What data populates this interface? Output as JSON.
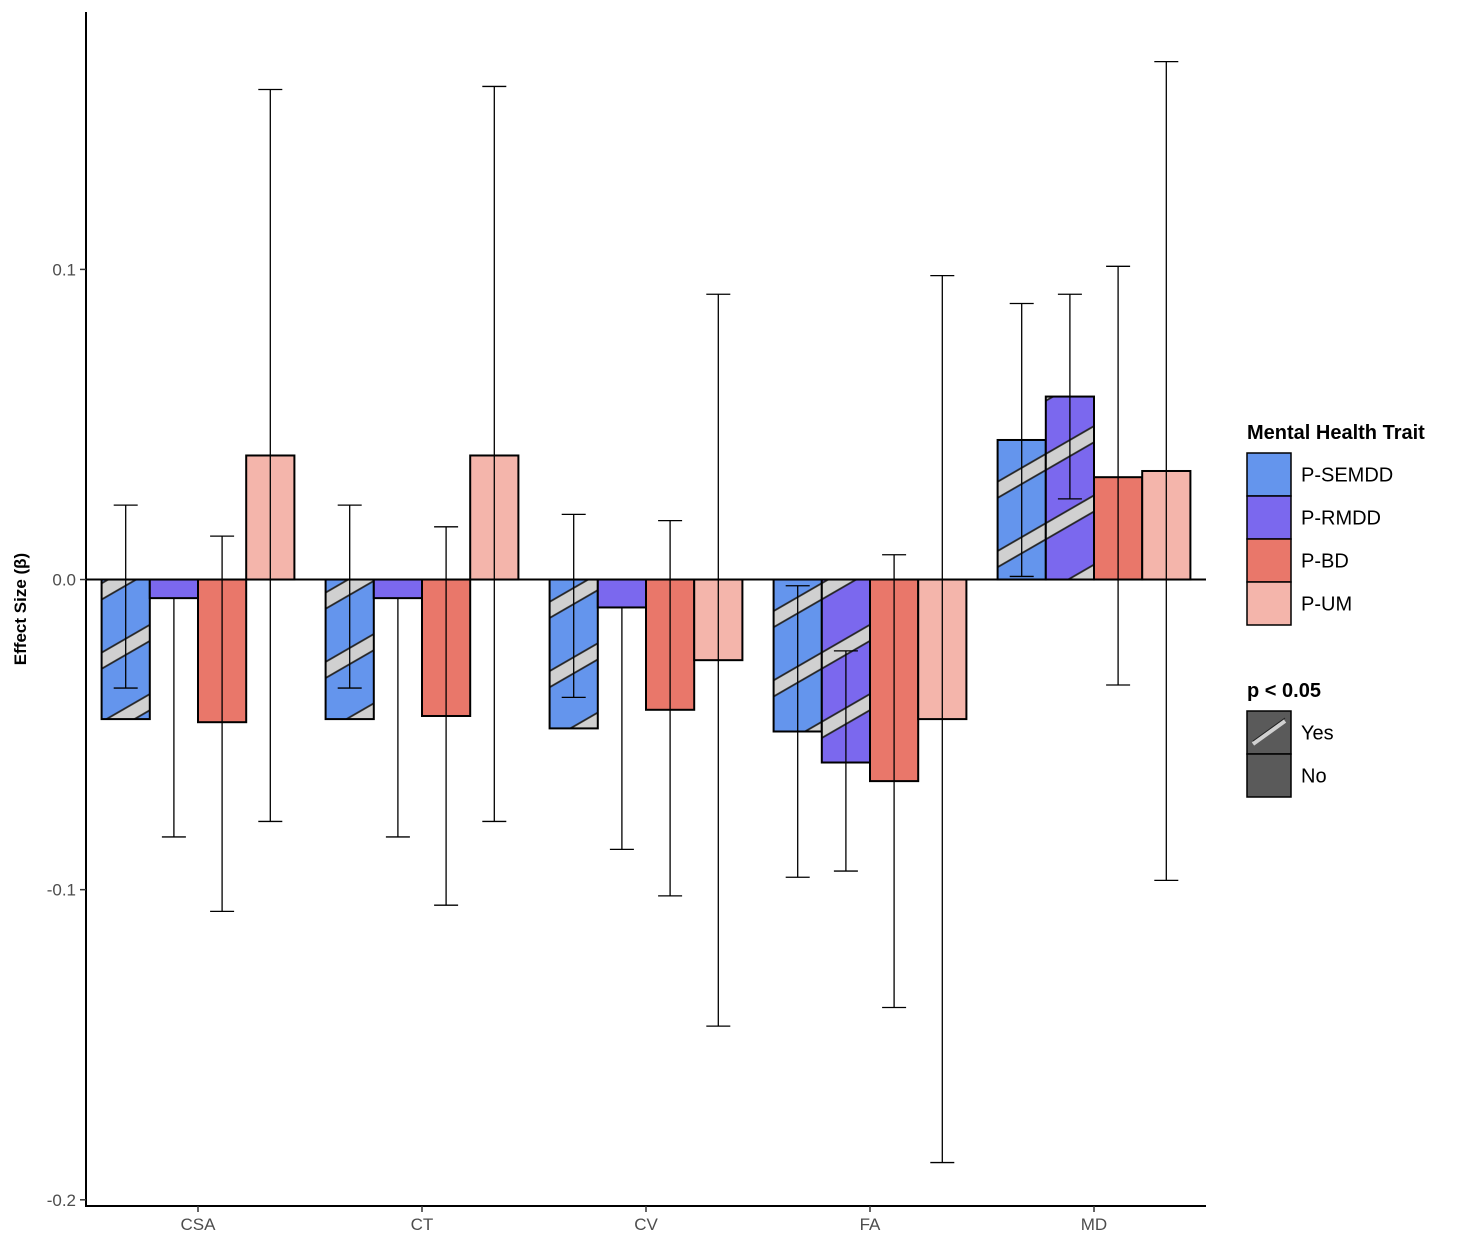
{
  "chart_data": {
    "type": "bar",
    "ylabel": "Effect Size (β)",
    "ylim": [
      -0.202,
      0.183
    ],
    "yticks": [
      -0.2,
      -0.1,
      0.0,
      0.1
    ],
    "ytick_labels": [
      "-0.2",
      "-0.1",
      "0.0",
      "0.1"
    ],
    "categories": [
      "CSA",
      "CT",
      "CV",
      "FA",
      "MD"
    ],
    "grid": false,
    "series": [
      {
        "name": "P-SEMDD",
        "color": "#6495ED",
        "values": [
          -0.045,
          -0.045,
          -0.048,
          -0.049,
          0.045
        ],
        "lower": [
          -0.035,
          -0.035,
          -0.038,
          -0.096,
          0.001
        ],
        "upper": [
          0.024,
          0.024,
          0.021,
          -0.002,
          0.089
        ],
        "significant": [
          true,
          true,
          true,
          true,
          true
        ]
      },
      {
        "name": "P-RMDD",
        "color": "#7B68EE",
        "values": [
          -0.006,
          -0.006,
          -0.009,
          -0.059,
          0.059
        ],
        "lower": [
          -0.083,
          -0.083,
          -0.087,
          -0.094,
          0.026
        ],
        "upper": [
          -0.006,
          -0.006,
          -0.009,
          -0.023,
          0.092
        ],
        "significant": [
          false,
          false,
          false,
          true,
          true
        ]
      },
      {
        "name": "P-BD",
        "color": "#E9776A",
        "values": [
          -0.046,
          -0.044,
          -0.042,
          -0.065,
          0.033
        ],
        "lower": [
          -0.107,
          -0.105,
          -0.102,
          -0.138,
          -0.034
        ],
        "upper": [
          0.014,
          0.017,
          0.019,
          0.008,
          0.101
        ],
        "significant": [
          false,
          false,
          false,
          false,
          false
        ]
      },
      {
        "name": "P-UM",
        "color": "#F4B5AB",
        "values": [
          0.04,
          0.04,
          -0.026,
          -0.045,
          0.035
        ],
        "lower": [
          -0.078,
          -0.078,
          -0.144,
          -0.188,
          -0.097
        ],
        "upper": [
          0.158,
          0.159,
          0.092,
          0.098,
          0.167
        ],
        "significant": [
          false,
          false,
          false,
          false,
          false
        ]
      }
    ],
    "legend": {
      "placement": "right",
      "fill_title": "Mental Health Trait",
      "fill_items": [
        "P-SEMDD",
        "P-RMDD",
        "P-BD",
        "P-UM"
      ],
      "pattern_title": "p < 0.05",
      "pattern_items": [
        "Yes",
        "No"
      ]
    }
  }
}
